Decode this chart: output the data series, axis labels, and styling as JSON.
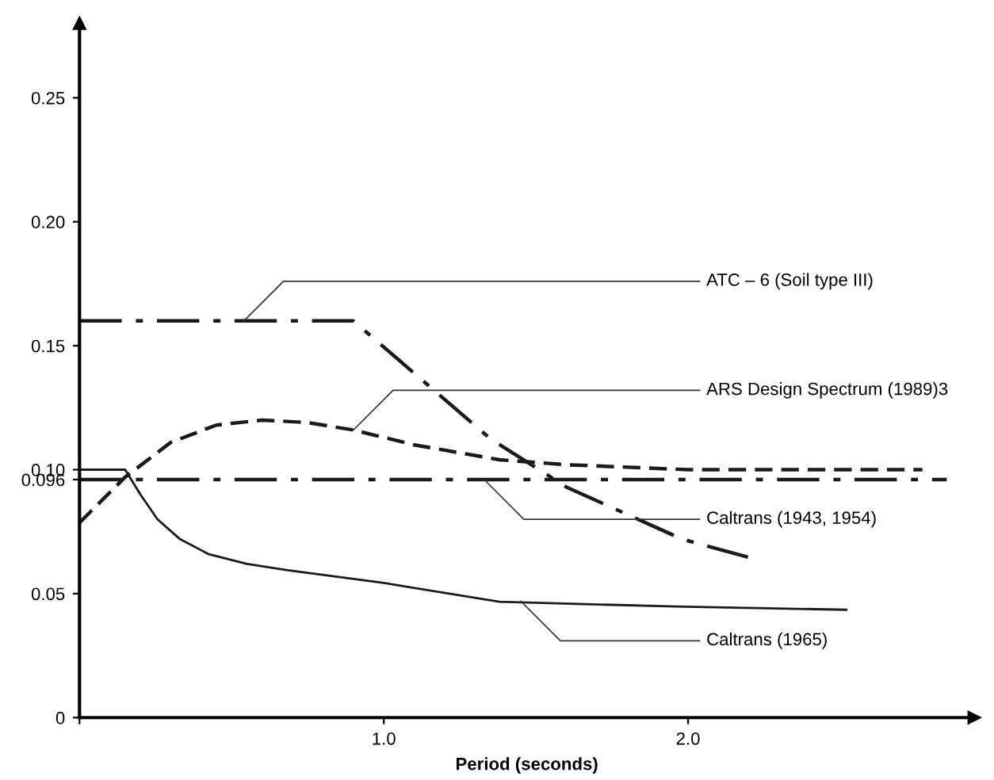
{
  "chart_data": {
    "type": "line",
    "xlabel": "Period (seconds)",
    "series": [
      {
        "color": "#1a1a1a",
        "line_style": "dashdot",
        "x": [
          0,
          0.9,
          1.35,
          1.6,
          1.98,
          2.2
        ],
        "values": [
          0.16,
          0.16,
          0.1125,
          0.093,
          0.072,
          0.0646
        ]
      },
      {
        "color": "#1a1a1a",
        "line_style": "dashed",
        "x": [
          0,
          0.15,
          0.3,
          0.45,
          0.6,
          0.75,
          0.9,
          1.1,
          1.38,
          1.6,
          2.0,
          2.4,
          2.77
        ],
        "values": [
          0.0786,
          0.097,
          0.111,
          0.118,
          0.12,
          0.119,
          0.116,
          0.11,
          0.104,
          0.102,
          0.1,
          0.1,
          0.1
        ]
      },
      {
        "color": "#1a1a1a",
        "line_style": "dashdot",
        "x": [
          0,
          2.85
        ],
        "values": [
          0.096,
          0.096
        ]
      },
      {
        "color": "#1a1a1a",
        "line_style": "solid",
        "x": [
          0,
          0.15,
          0.2,
          0.256,
          0.33,
          0.425,
          0.55,
          0.68,
          1.0,
          1.38,
          1.96,
          2.52
        ],
        "values": [
          0.1,
          0.1,
          0.09,
          0.08,
          0.072,
          0.0659,
          0.062,
          0.0595,
          0.0543,
          0.0467,
          0.0448,
          0.0435
        ]
      }
    ],
    "annotations": [
      {
        "text": "ATC – 6 (Soil type III)",
        "x": 0.54,
        "y": 0.16
      },
      {
        "text": "ARS Design Spectrum (1989)3",
        "x": 0.9,
        "y": 0.116
      },
      {
        "text": "Caltrans (1943, 1954)",
        "x": 1.33,
        "y": 0.096
      },
      {
        "text": "Caltrans (1965)",
        "x": 1.45,
        "y": 0.047
      }
    ],
    "xlim": [
      0,
      2.94
    ],
    "ylim": [
      0,
      0.28
    ],
    "xticks": [
      {
        "value": 0,
        "label": null
      },
      {
        "value": 1,
        "label": "1.0"
      },
      {
        "value": 2,
        "label": "2.0"
      }
    ],
    "yticks": [
      0,
      0.05,
      {
        "value": 0.096,
        "label": "0.096"
      },
      {
        "value": 0.1,
        "label": "0.10"
      },
      0.15,
      {
        "value": 0.2,
        "label": "0.20"
      },
      0.25
    ],
    "grid": false,
    "legend": false,
    "marker": "none"
  }
}
